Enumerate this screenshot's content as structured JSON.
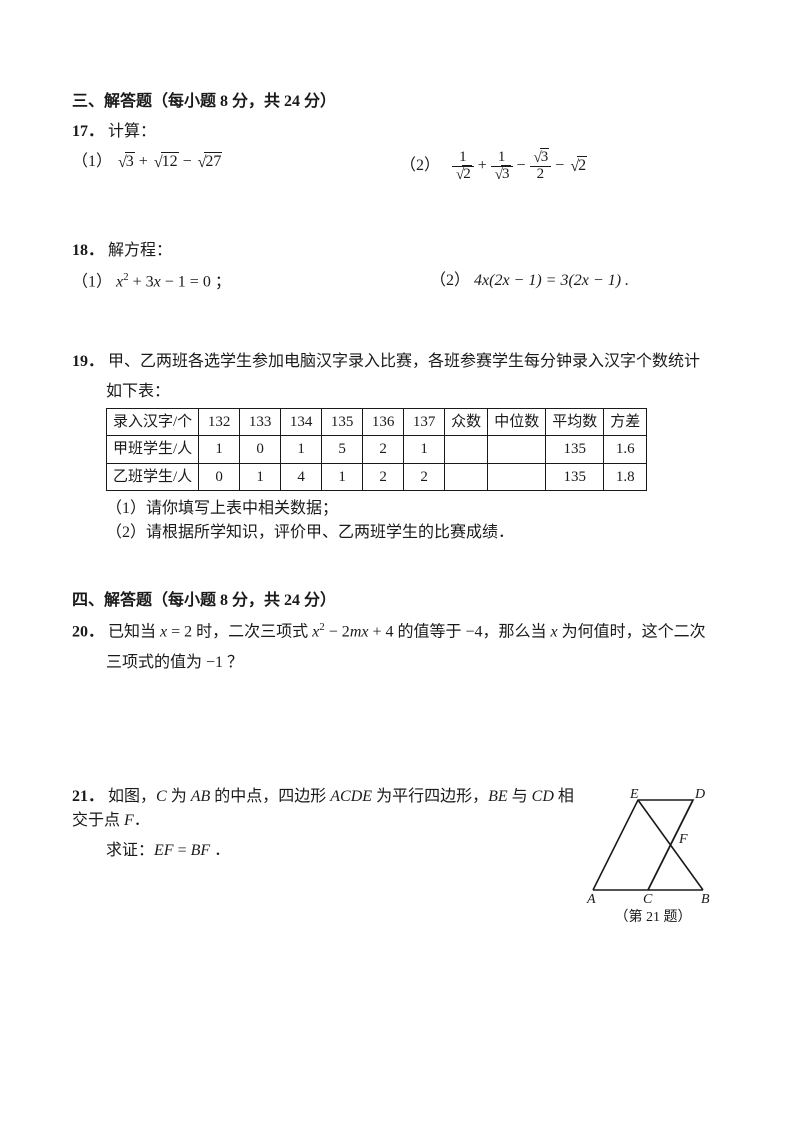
{
  "section3": {
    "header": "三、解答题（每小题 8 分，共 24 分）",
    "q17": {
      "num": "17．",
      "label": "计算：",
      "p1_label": "（1）",
      "p1_a": "3",
      "p1_b": "12",
      "p1_c": "27",
      "p2_label": "（2）",
      "p2_f1num": "1",
      "p2_f1den": "2",
      "p2_f2num": "1",
      "p2_f2den": "3",
      "p2_f3num": "3",
      "p2_f3den": "2",
      "p2_tail": "2"
    },
    "q18": {
      "num": "18．",
      "label": "解方程：",
      "p1_label": "（1）",
      "p1_expr_a": "x",
      "p1_expr_b": " + 3",
      "p1_expr_c": "x",
      "p1_expr_d": " − 1 = 0 ；",
      "p2_label": "（2）",
      "p2_expr": "4x(2x − 1) = 3(2x − 1) ."
    },
    "q19": {
      "num": "19．",
      "intro1": "甲、乙两班各选学生参加电脑汉字录入比赛，各班参赛学生每分钟录入汉字个数统计",
      "intro2": "如下表：",
      "table": {
        "headers": [
          "录入汉字/个",
          "132",
          "133",
          "134",
          "135",
          "136",
          "137",
          "众数",
          "中位数",
          "平均数",
          "方差"
        ],
        "rows": [
          [
            "甲班学生/人",
            "1",
            "0",
            "1",
            "5",
            "2",
            "1",
            "",
            "",
            "135",
            "1.6"
          ],
          [
            "乙班学生/人",
            "0",
            "1",
            "4",
            "1",
            "2",
            "2",
            "",
            "",
            "135",
            "1.8"
          ]
        ]
      },
      "sub1": "（1）请你填写上表中相关数据；",
      "sub2": "（2）请根据所学知识，评价甲、乙两班学生的比赛成绩．"
    }
  },
  "section4": {
    "header": "四、解答题（每小题 8 分，共 24 分）",
    "q20": {
      "num": "20．",
      "line1a": "已知当 ",
      "line1b": "x",
      "line1c": " = 2 时，二次三项式 ",
      "line1d": "x",
      "line1e": " − 2",
      "line1f": "mx",
      "line1g": " + 4 的值等于 −4，那么当 ",
      "line1h": "x",
      "line1i": " 为何值时，这个二次",
      "line2": "三项式的值为 −1 ？"
    },
    "q21": {
      "num": "21．",
      "line1a": "如图，",
      "line1b": "C",
      "line1c": " 为 ",
      "line1d": "AB",
      "line1e": " 的中点，四边形 ",
      "line1f": "ACDE",
      "line1g": " 为平行四边形，",
      "line1h": "BE",
      "line1i": " 与 ",
      "line1j": "CD",
      "line1k": " 相交于点 ",
      "line1l": "F",
      "line1m": "．",
      "line2a": "求证：",
      "line2b": "EF",
      "line2c": " = ",
      "line2d": "BF",
      "line2e": " ．",
      "labels": {
        "A": "A",
        "B": "B",
        "C": "C",
        "D": "D",
        "E": "E",
        "F": "F"
      },
      "caption": "（第 21 题）"
    }
  }
}
